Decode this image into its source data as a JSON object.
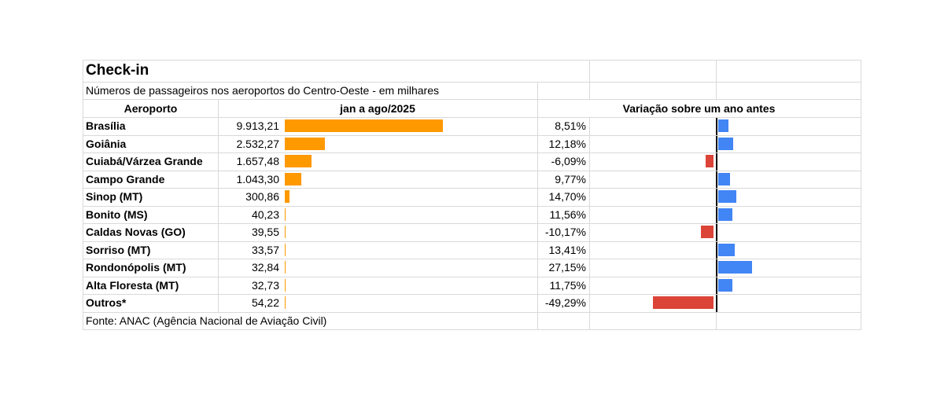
{
  "title": "Check-in",
  "subtitle": "Números de passageiros nos aeroportos do Centro-Oeste - em milhares",
  "headers": {
    "airport": "Aeroporto",
    "period": "jan a ago/2025",
    "variation": "Variação sobre um ano antes"
  },
  "source": "Fonte: ANAC (Agência Nacional de Aviação Civil)",
  "colors": {
    "passengers_bar": "#ff9900",
    "positive_bar": "#4285f4",
    "negative_bar": "#db4437",
    "grid": "#d9d9d9"
  },
  "rows": [
    {
      "airport": "Brasília",
      "passengers_label": "9.913,21",
      "variation_label": "8,51%"
    },
    {
      "airport": "Goiânia",
      "passengers_label": "2.532,27",
      "variation_label": "12,18%"
    },
    {
      "airport": "Cuiabá/Várzea Grande",
      "passengers_label": "1.657,48",
      "variation_label": "-6,09%"
    },
    {
      "airport": "Campo Grande",
      "passengers_label": "1.043,30",
      "variation_label": "9,77%"
    },
    {
      "airport": "Sinop (MT)",
      "passengers_label": "300,86",
      "variation_label": "14,70%"
    },
    {
      "airport": "Bonito (MS)",
      "passengers_label": "40,23",
      "variation_label": "11,56%"
    },
    {
      "airport": "Caldas Novas (GO)",
      "passengers_label": "39,55",
      "variation_label": "-10,17%"
    },
    {
      "airport": "Sorriso (MT)",
      "passengers_label": "33,57",
      "variation_label": "13,41%"
    },
    {
      "airport": "Rondonópolis (MT)",
      "passengers_label": "32,84",
      "variation_label": "27,15%"
    },
    {
      "airport": "Alta Floresta (MT)",
      "passengers_label": "32,73",
      "variation_label": "11,75%"
    },
    {
      "airport": "Outros*",
      "passengers_label": "54,22",
      "variation_label": "-49,29%"
    }
  ],
  "chart_data": [
    {
      "type": "bar",
      "orientation": "horizontal",
      "categories": [
        "Brasília",
        "Goiânia",
        "Cuiabá/Várzea Grande",
        "Campo Grande",
        "Sinop (MT)",
        "Bonito (MS)",
        "Caldas Novas (GO)",
        "Sorriso (MT)",
        "Rondonópolis (MT)",
        "Alta Floresta (MT)",
        "Outros*"
      ],
      "values": [
        9913.21,
        2532.27,
        1657.48,
        1043.3,
        300.86,
        40.23,
        39.55,
        33.57,
        32.84,
        32.73,
        54.22
      ],
      "xlim": [
        0,
        9913.21
      ]
    },
    {
      "type": "bar",
      "orientation": "horizontal",
      "categories": [
        "Brasília",
        "Goiânia",
        "Cuiabá/Várzea Grande",
        "Campo Grande",
        "Sinop (MT)",
        "Bonito (MS)",
        "Caldas Novas (GO)",
        "Sorriso (MT)",
        "Rondonópolis (MT)",
        "Alta Floresta (MT)",
        "Outros*"
      ],
      "values": [
        8.51,
        12.18,
        -6.09,
        9.77,
        14.7,
        11.56,
        -10.17,
        13.41,
        27.15,
        11.75,
        -49.29
      ],
      "xlim": [
        -49.29,
        27.15
      ]
    }
  ]
}
